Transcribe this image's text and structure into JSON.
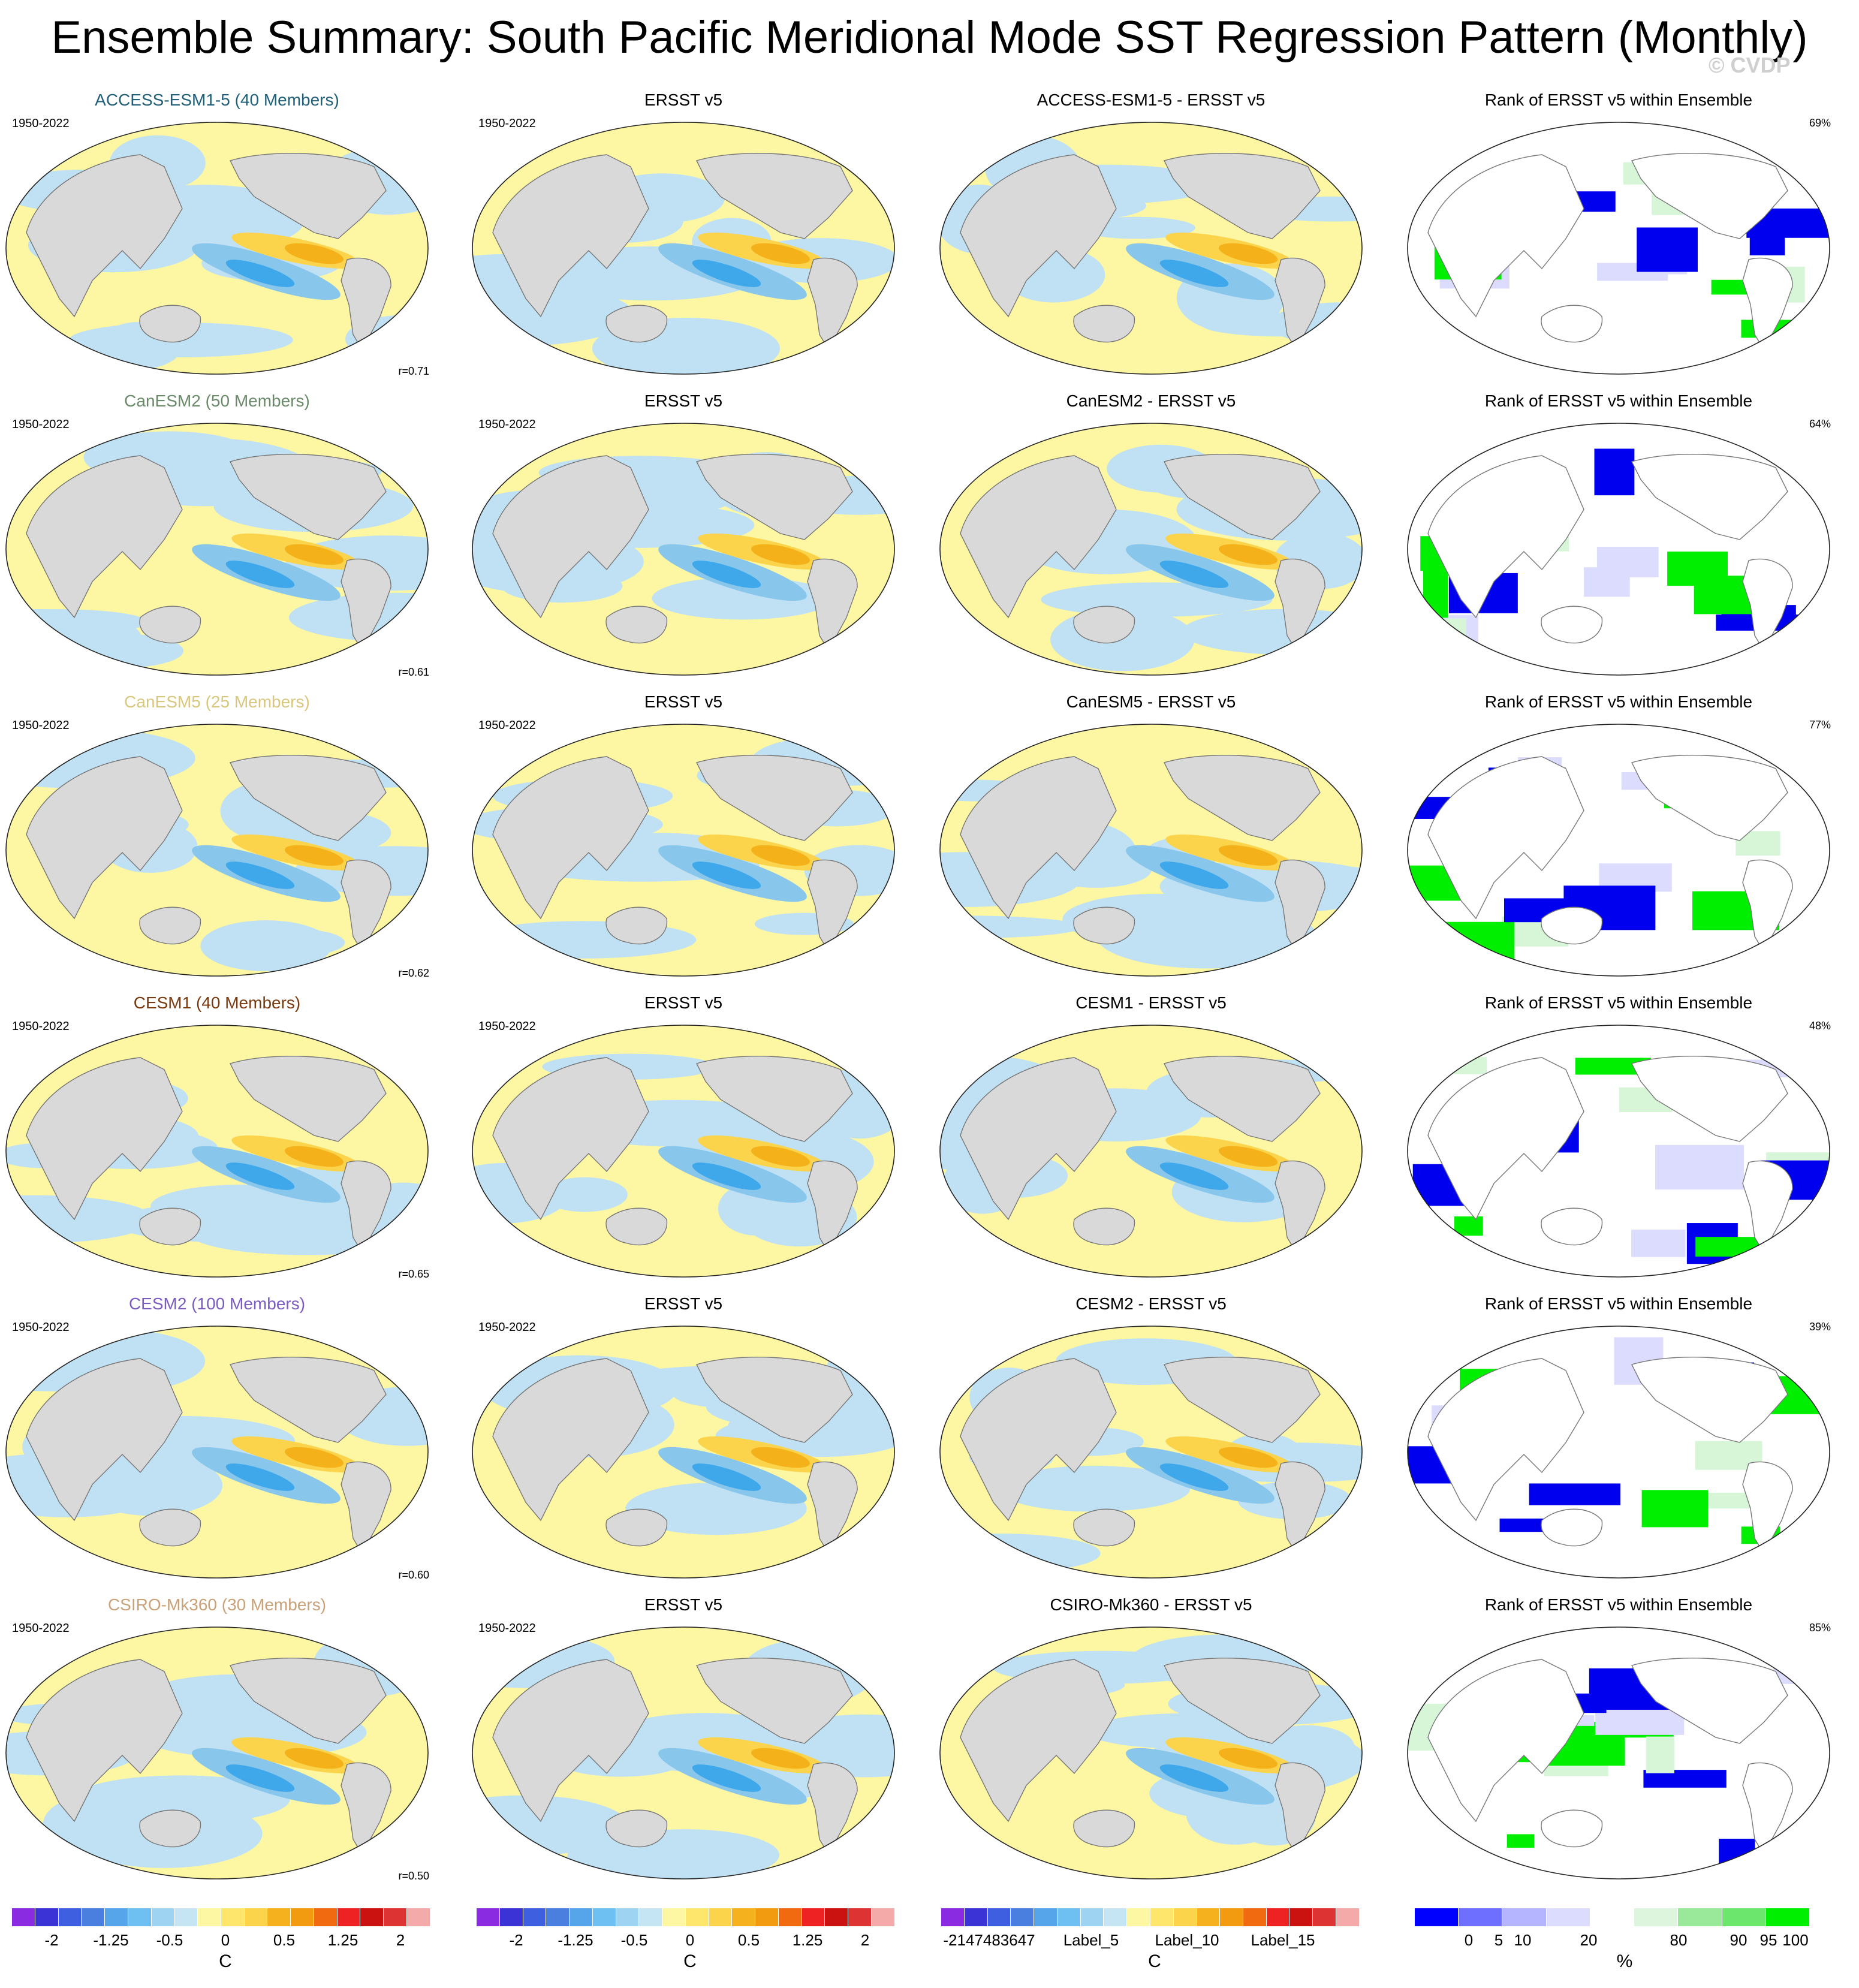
{
  "title": "Ensemble Summary: South Pacific Meridional Mode SST Regression Pattern (Monthly)",
  "watermark": "© CVDP",
  "rows": [
    {
      "model_title": "ACCESS-ESM1-5 (40 Members)",
      "title_color": "#1f5f7a",
      "period_model": "1950-2022",
      "corr": "r=0.71",
      "obs_title": "ERSST v5",
      "period_obs": "1950-2022",
      "diff_title": "ACCESS-ESM1-5 - ERSST v5",
      "rank_title": "Rank of ERSST v5 within Ensemble",
      "rank_pct": "69%"
    },
    {
      "model_title": "CanESM2 (50 Members)",
      "title_color": "#6a8a6a",
      "period_model": "1950-2022",
      "corr": "r=0.61",
      "obs_title": "ERSST v5",
      "period_obs": "1950-2022",
      "diff_title": "CanESM2 - ERSST v5",
      "rank_title": "Rank of ERSST v5 within Ensemble",
      "rank_pct": "64%"
    },
    {
      "model_title": "CanESM5 (25 Members)",
      "title_color": "#d9c77e",
      "period_model": "1950-2022",
      "corr": "r=0.62",
      "obs_title": "ERSST v5",
      "period_obs": "1950-2022",
      "diff_title": "CanESM5 - ERSST v5",
      "rank_title": "Rank of ERSST v5 within Ensemble",
      "rank_pct": "77%"
    },
    {
      "model_title": "CESM1 (40 Members)",
      "title_color": "#7a3a10",
      "period_model": "1950-2022",
      "corr": "r=0.65",
      "obs_title": "ERSST v5",
      "period_obs": "1950-2022",
      "diff_title": "CESM1 - ERSST v5",
      "rank_title": "Rank of ERSST v5 within Ensemble",
      "rank_pct": "48%"
    },
    {
      "model_title": "CESM2 (100 Members)",
      "title_color": "#7b5bc4",
      "period_model": "1950-2022",
      "corr": "r=0.60",
      "obs_title": "ERSST v5",
      "period_obs": "1950-2022",
      "diff_title": "CESM2 - ERSST v5",
      "rank_title": "Rank of ERSST v5 within Ensemble",
      "rank_pct": "39%"
    },
    {
      "model_title": "CSIRO-Mk360 (30 Members)",
      "title_color": "#c9a27a",
      "period_model": "1950-2022",
      "corr": "r=0.50",
      "obs_title": "ERSST v5",
      "period_obs": "1950-2022",
      "diff_title": "CSIRO-Mk360 - ERSST v5",
      "rank_title": "Rank of ERSST v5 within Ensemble",
      "rank_pct": "85%"
    }
  ],
  "legends": {
    "model": {
      "ticks": [
        "-2",
        "-1.25",
        "-0.5",
        "0",
        "0.5",
        "1.25",
        "2"
      ],
      "unit": "C"
    },
    "obs": {
      "ticks": [
        "-2",
        "-1.25",
        "-0.5",
        "0",
        "0.5",
        "1.25",
        "2"
      ],
      "unit": "C"
    },
    "diff": {
      "ticks": [
        "-2147483647",
        "Label_5",
        "Label_10",
        "Label_15"
      ],
      "unit": "C"
    },
    "rank": {
      "ticks": [
        "0",
        "5",
        "10",
        "20",
        "80",
        "90",
        "95",
        "100"
      ],
      "unit": "%"
    }
  },
  "colors": {
    "land": "#d9d9d9",
    "coast": "#777777",
    "ocean_pos": "#fdf6a3",
    "ocean_neg": "#bfe1f3",
    "pos_mid": "#fbd44b",
    "pos_strong": "#f4b11a",
    "neg_mid": "#88c6ec",
    "neg_strong": "#3fa8ea",
    "rank_low": "#0000ee",
    "rank_mid_low": "#dcdcff",
    "rank_high": "#00ee00",
    "rank_mid_high": "#d7f5d7",
    "diverging_scale": [
      "#8a2be2",
      "#3b33d6",
      "#3d5fe0",
      "#4a7fe0",
      "#56a5ea",
      "#6ec0f2",
      "#9ed4f2",
      "#c5e5f5",
      "#fdf6a3",
      "#fde66b",
      "#fbd44b",
      "#f6b21e",
      "#f29a10",
      "#f26a10",
      "#ee2222",
      "#cc1111",
      "#dd3333",
      "#f5aaaa"
    ],
    "rank_scale": [
      "#0000ff",
      "#6f6fff",
      "#b5b5ff",
      "#dcdcff",
      "#ffffff",
      "#ddf5dd",
      "#9ae89a",
      "#6ce66c",
      "#00ee00"
    ]
  }
}
